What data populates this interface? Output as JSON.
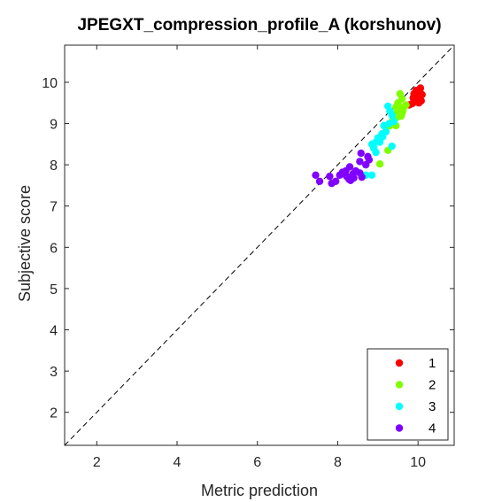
{
  "chart_data": {
    "type": "scatter",
    "title": "JPEGXT_compression_profile_A (korshunov)",
    "xlabel": "Metric prediction",
    "ylabel": "Subjective score",
    "xlim": [
      1.2,
      10.9
    ],
    "ylim": [
      1.2,
      10.9
    ],
    "xticks": [
      "2",
      "4",
      "6",
      "8",
      "10"
    ],
    "yticks": [
      "2",
      "3",
      "4",
      "5",
      "6",
      "7",
      "8",
      "9",
      "10"
    ],
    "grid": false,
    "reference_line": "identity (dashed)",
    "legend_position": "bottom-right",
    "series": [
      {
        "name": "1",
        "color": "#ff0000",
        "points": [
          [
            9.78,
            9.45
          ],
          [
            9.85,
            9.48
          ],
          [
            9.92,
            9.52
          ],
          [
            9.98,
            9.62
          ],
          [
            10.02,
            9.5
          ],
          [
            9.9,
            9.72
          ],
          [
            9.95,
            9.8
          ],
          [
            10.0,
            9.75
          ],
          [
            10.05,
            9.83
          ],
          [
            10.1,
            9.7
          ],
          [
            9.88,
            9.62
          ],
          [
            10.08,
            9.55
          ],
          [
            9.97,
            9.68
          ],
          [
            10.03,
            9.6
          ],
          [
            9.93,
            9.7
          ],
          [
            10.06,
            9.86
          ]
        ]
      },
      {
        "name": "2",
        "color": "#80ff00",
        "points": [
          [
            9.55,
            9.72
          ],
          [
            9.6,
            9.6
          ],
          [
            9.5,
            9.5
          ],
          [
            9.45,
            9.4
          ],
          [
            9.55,
            9.35
          ],
          [
            9.62,
            9.3
          ],
          [
            9.5,
            9.28
          ],
          [
            9.4,
            9.22
          ],
          [
            9.7,
            9.45
          ],
          [
            9.65,
            9.4
          ],
          [
            9.58,
            9.18
          ],
          [
            9.48,
            9.15
          ],
          [
            9.35,
            9.05
          ],
          [
            9.3,
            8.95
          ],
          [
            9.45,
            8.95
          ],
          [
            9.2,
            8.82
          ],
          [
            9.25,
            8.35
          ],
          [
            9.05,
            8.02
          ],
          [
            9.6,
            9.25
          ],
          [
            9.52,
            9.35
          ]
        ]
      },
      {
        "name": "3",
        "color": "#00ffff",
        "points": [
          [
            9.25,
            9.42
          ],
          [
            9.35,
            9.2
          ],
          [
            9.3,
            9.3
          ],
          [
            9.4,
            9.05
          ],
          [
            9.15,
            8.95
          ],
          [
            9.2,
            8.8
          ],
          [
            9.1,
            8.75
          ],
          [
            9.0,
            8.65
          ],
          [
            8.95,
            8.55
          ],
          [
            8.85,
            8.5
          ],
          [
            8.9,
            8.4
          ],
          [
            8.95,
            8.3
          ],
          [
            9.05,
            8.55
          ],
          [
            9.35,
            8.45
          ],
          [
            8.7,
            7.75
          ],
          [
            8.85,
            7.75
          ],
          [
            9.12,
            8.68
          ],
          [
            9.28,
            9.0
          ]
        ]
      },
      {
        "name": "4",
        "color": "#8000ff",
        "points": [
          [
            7.45,
            7.75
          ],
          [
            7.55,
            7.6
          ],
          [
            7.8,
            7.72
          ],
          [
            7.85,
            7.55
          ],
          [
            7.95,
            7.6
          ],
          [
            8.05,
            7.75
          ],
          [
            8.12,
            7.82
          ],
          [
            8.2,
            7.85
          ],
          [
            8.28,
            7.65
          ],
          [
            8.32,
            7.62
          ],
          [
            8.38,
            7.78
          ],
          [
            8.45,
            7.85
          ],
          [
            8.55,
            7.8
          ],
          [
            8.6,
            7.7
          ],
          [
            8.3,
            7.95
          ],
          [
            8.55,
            8.08
          ],
          [
            8.7,
            8.0
          ],
          [
            8.78,
            8.12
          ],
          [
            8.58,
            8.28
          ],
          [
            8.75,
            8.2
          ],
          [
            8.22,
            7.72
          ],
          [
            8.4,
            7.68
          ]
        ]
      }
    ]
  }
}
